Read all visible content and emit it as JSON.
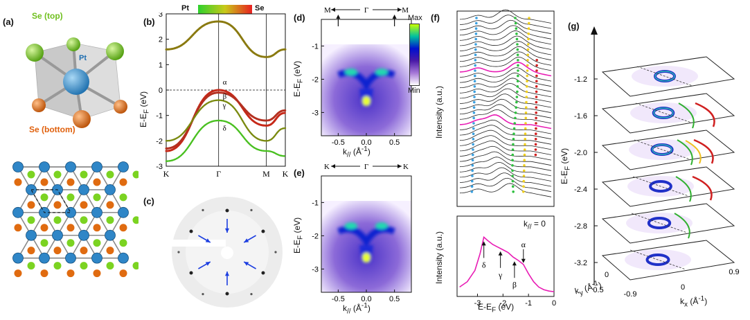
{
  "panel_labels": {
    "a": "(a)",
    "b": "(b)",
    "c": "(c)",
    "d": "(d)",
    "e": "(e)",
    "f": "(f)",
    "g": "(g)"
  },
  "structure": {
    "se_top": "Se (top)",
    "pt": "Pt",
    "se_bottom": "Se (bottom)",
    "colors": {
      "pt": "#2f86c7",
      "se_top": "#7bd321",
      "se_bottom": "#e06b10"
    }
  },
  "bands": {
    "colorbar_left": "Pt",
    "colorbar_right": "Se",
    "ylabel": "E-E",
    "ylabel_sub": "F",
    "ylabel_unit": " (eV)",
    "yticks": [
      "3",
      "2",
      "1",
      "0",
      "-1",
      "-2",
      "-3"
    ],
    "xticks": [
      "K",
      "Γ",
      "M",
      "K"
    ],
    "band_labels": [
      "α",
      "β",
      "γ",
      "δ"
    ],
    "chart_data": {
      "type": "line",
      "x": [
        "K",
        "Γ",
        "M",
        "K"
      ],
      "ylim": [
        -3,
        3
      ],
      "series": [
        {
          "values": [
            1.6,
            2.7,
            1.3,
            1.6
          ]
        },
        {
          "values": [
            -2.4,
            0.0,
            -1.4,
            -0.9
          ]
        },
        {
          "values": [
            -2.3,
            -0.1,
            -1.2,
            -0.8
          ]
        },
        {
          "values": [
            -2.0,
            -0.4,
            -2.0,
            -1.5
          ]
        },
        {
          "values": [
            -2.8,
            -1.2,
            -2.4,
            -2.6
          ]
        }
      ]
    }
  },
  "leed": {
    "label": "(c)"
  },
  "arpes_d": {
    "top_labels": [
      "M",
      "Γ",
      "M"
    ],
    "ylabel": "E-E",
    "ylabel_sub": "F",
    "ylabel_unit": " (eV)",
    "yticks": [
      "-1",
      "-2",
      "-3"
    ],
    "xticks": [
      "-0.5",
      "0.0",
      "0.5"
    ],
    "xlabel": "k",
    "xlabel_sub": "//",
    "xlabel_unit": " (Å",
    "xlabel_sup": "-1",
    "colorbar_max": "Max",
    "colorbar_min": "Min"
  },
  "arpes_e": {
    "top_labels": [
      "K",
      "Γ",
      "K"
    ],
    "ylabel": "E-E",
    "ylabel_sub": "F",
    "ylabel_unit": " (eV)",
    "yticks": [
      "-1",
      "-2",
      "-3"
    ],
    "xticks": [
      "-0.5",
      "0.0",
      "0.5"
    ],
    "xlabel": "k",
    "xlabel_sub": "//",
    "xlabel_unit": " (Å",
    "xlabel_sup": "-1"
  },
  "edc": {
    "ylabel_top": "Intensity (a.u.)",
    "ylabel_bottom": "Intensity (a.u.)",
    "k_label": "k",
    "k_sub": "//",
    "k_value": " = 0",
    "peak_labels": [
      "δ",
      "γ",
      "β",
      "α"
    ],
    "xticks": [
      "-3",
      "-2",
      "-1",
      "0"
    ],
    "xlabel": "E-E",
    "xlabel_sub": "F",
    "xlabel_unit": " (eV)",
    "chart_data": {
      "type": "line",
      "x": [
        -3.7,
        -3.4,
        -3.1,
        -2.9,
        -2.75,
        -2.6,
        -2.4,
        -2.2,
        -2.0,
        -1.8,
        -1.6,
        -1.4,
        -1.2,
        -1.0,
        -0.8,
        -0.6,
        -0.4,
        -0.2,
        0.0
      ],
      "xlim": [
        -3.8,
        0.0
      ],
      "series": [
        {
          "values": [
            0.1,
            0.18,
            0.35,
            0.6,
            0.85,
            0.8,
            0.74,
            0.7,
            0.66,
            0.62,
            0.55,
            0.5,
            0.44,
            0.3,
            0.18,
            0.1,
            0.06,
            0.04,
            0.03
          ]
        }
      ]
    }
  },
  "cec": {
    "zlabel": "E-E",
    "zlabel_sub": "F",
    "zlabel_unit": " (eV)",
    "energies": [
      "-1.2",
      "-1.6",
      "-2.0",
      "-2.4",
      "-2.8",
      "-3.2"
    ],
    "ky_label": "k",
    "ky_sub": "y",
    "ky_unit": " (Å",
    "ky_sup": "-1",
    "ky_ticks": [
      "0",
      "0.5"
    ],
    "kx_label": "k",
    "kx_sub": "x",
    "kx_unit": " (Å",
    "kx_sup": "-1",
    "kx_ticks": [
      "-0.9",
      "0",
      "0.9"
    ]
  }
}
